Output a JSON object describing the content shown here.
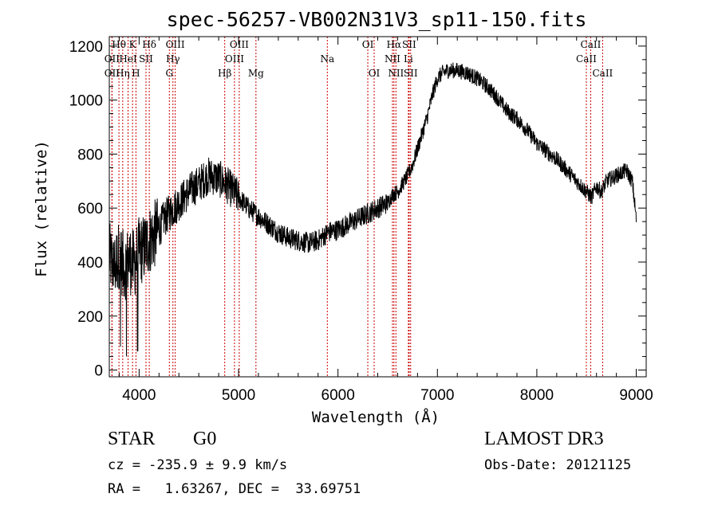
{
  "chart_data": {
    "type": "line",
    "title": "spec-56257-VB002N31V3_sp11-150.fits",
    "xlabel": "Wavelength (Å)",
    "ylabel": "Flux (relative)",
    "xlim": [
      3700,
      9100
    ],
    "ylim": [
      -25,
      1235
    ],
    "xticks": [
      4000,
      5000,
      6000,
      7000,
      8000,
      9000
    ],
    "yticks": [
      0,
      200,
      400,
      600,
      800,
      1000,
      1200
    ],
    "series": [
      {
        "name": "flux",
        "x": [
          3700,
          3750,
          3800,
          3850,
          3900,
          3950,
          4000,
          4050,
          4100,
          4150,
          4200,
          4250,
          4300,
          4350,
          4400,
          4450,
          4500,
          4600,
          4700,
          4800,
          4900,
          5000,
          5100,
          5200,
          5300,
          5400,
          5500,
          5600,
          5700,
          5800,
          5900,
          6000,
          6100,
          6200,
          6300,
          6400,
          6500,
          6550,
          6600,
          6650,
          6700,
          6750,
          6800,
          6850,
          6900,
          6950,
          7000,
          7050,
          7100,
          7200,
          7300,
          7400,
          7500,
          7600,
          7700,
          7800,
          7900,
          8000,
          8100,
          8200,
          8300,
          8400,
          8500,
          8550,
          8600,
          8650,
          8700,
          8800,
          8900,
          8960,
          9000
        ],
        "y": [
          420,
          380,
          430,
          380,
          410,
          390,
          440,
          450,
          480,
          500,
          520,
          560,
          580,
          600,
          620,
          640,
          660,
          690,
          720,
          710,
          680,
          640,
          600,
          570,
          540,
          510,
          490,
          480,
          470,
          480,
          510,
          520,
          540,
          560,
          580,
          600,
          620,
          650,
          660,
          690,
          720,
          760,
          820,
          880,
          940,
          1020,
          1080,
          1100,
          1110,
          1110,
          1100,
          1080,
          1050,
          1010,
          960,
          930,
          890,
          840,
          810,
          780,
          740,
          700,
          660,
          640,
          680,
          660,
          700,
          720,
          740,
          700,
          560
        ]
      }
    ],
    "annotations": {
      "spectral_lines": [
        {
          "label": "Hθ",
          "x": 3797,
          "row": 0
        },
        {
          "label": "OII",
          "x": 3727,
          "row": 1
        },
        {
          "label": "OII",
          "x": 3727,
          "row": 2
        },
        {
          "label": "K",
          "x": 3934,
          "row": 0
        },
        {
          "label": "HeI",
          "x": 3889,
          "row": 1
        },
        {
          "label": "Hη",
          "x": 3835,
          "row": 2
        },
        {
          "label": "Hδ",
          "x": 4102,
          "row": 0
        },
        {
          "label": "SII",
          "x": 4069,
          "row": 1
        },
        {
          "label": "H",
          "x": 3968,
          "row": 2
        },
        {
          "label": "OIII",
          "x": 4363,
          "row": 0
        },
        {
          "label": "Hγ",
          "x": 4340,
          "row": 1
        },
        {
          "label": "G",
          "x": 4304,
          "row": 2
        },
        {
          "label": "OIII",
          "x": 5007,
          "row": 0
        },
        {
          "label": "OIII",
          "x": 4959,
          "row": 1
        },
        {
          "label": "Hβ",
          "x": 4861,
          "row": 2
        },
        {
          "label": "Mg",
          "x": 5175,
          "row": 2
        },
        {
          "label": "Na",
          "x": 5893,
          "row": 1
        },
        {
          "label": "OI",
          "x": 6300,
          "row": 0
        },
        {
          "label": "OI",
          "x": 6364,
          "row": 2
        },
        {
          "label": "Hα",
          "x": 6563,
          "row": 0
        },
        {
          "label": "SII",
          "x": 6716,
          "row": 0
        },
        {
          "label": "NII",
          "x": 6548,
          "row": 1
        },
        {
          "label": "Li",
          "x": 6708,
          "row": 1
        },
        {
          "label": "NII",
          "x": 6583,
          "row": 2
        },
        {
          "label": "SII",
          "x": 6731,
          "row": 2
        },
        {
          "label": "CaII",
          "x": 8542,
          "row": 0
        },
        {
          "label": "CaII",
          "x": 8498,
          "row": 1
        },
        {
          "label": "CaII",
          "x": 8662,
          "row": 2
        }
      ]
    }
  },
  "info": {
    "object_class": "STAR",
    "subclass": "G0",
    "survey": "LAMOST DR3",
    "redshift": "cz = -235.9 ± 9.9 km/s",
    "obs_date": "Obs-Date: 20121125",
    "coords": "RA =   1.63267, DEC =  33.69751"
  },
  "colors": {
    "spectrum": "#000000",
    "line_markers": "#cc0000",
    "axes": "#000000",
    "background": "#ffffff"
  }
}
